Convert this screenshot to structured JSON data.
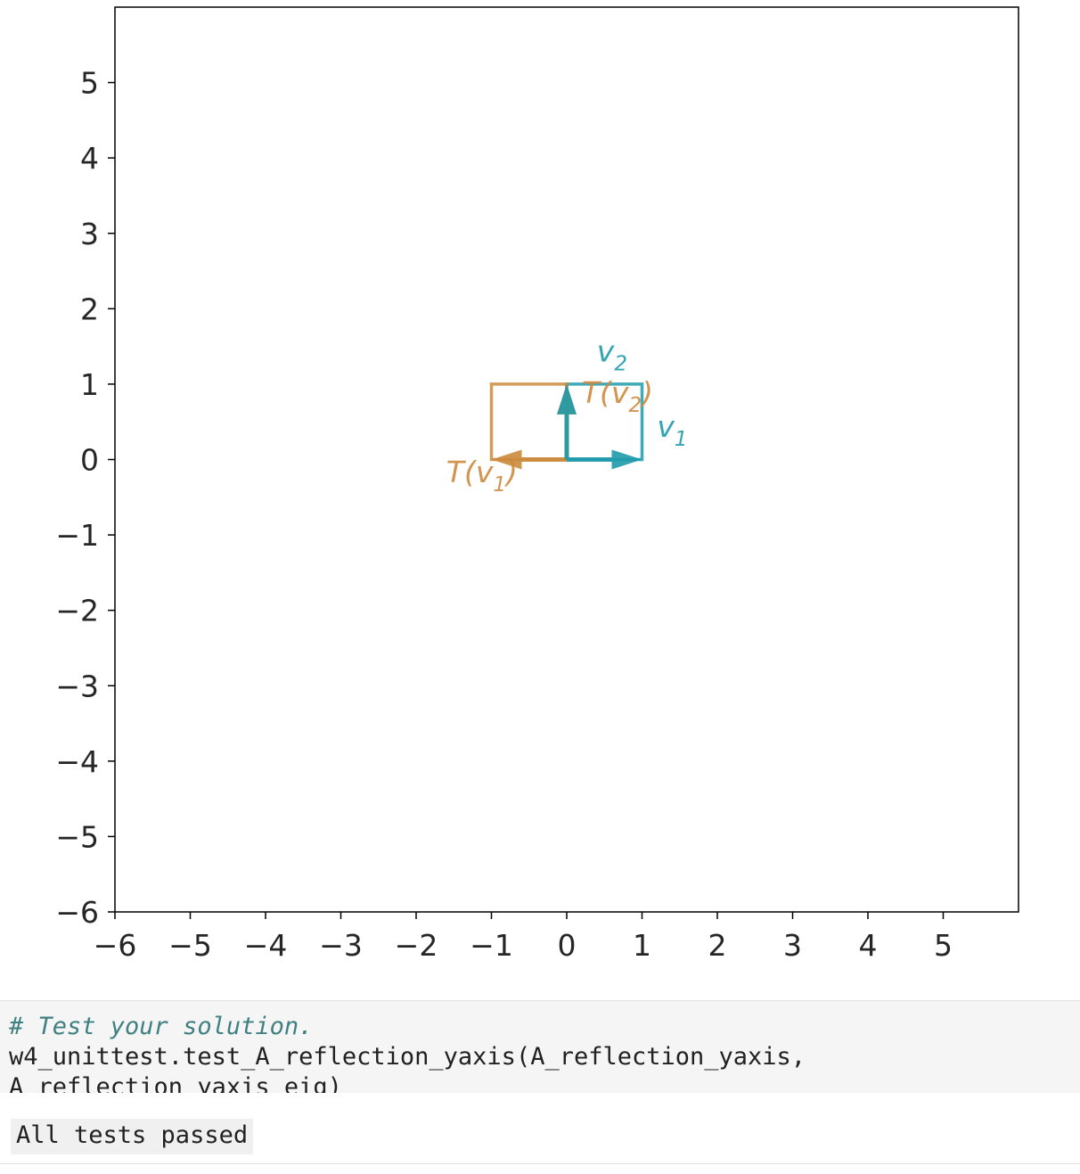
{
  "chart_data": {
    "type": "line",
    "title": "",
    "xlabel": "",
    "ylabel": "",
    "xlim": [
      -6,
      6
    ],
    "ylim": [
      -6,
      6
    ],
    "xticks": [
      "−6",
      "−5",
      "−4",
      "−3",
      "−2",
      "−1",
      "0",
      "1",
      "2",
      "3",
      "4",
      "5"
    ],
    "yticks": [
      "5",
      "4",
      "3",
      "2",
      "1",
      "0",
      "−1",
      "−2",
      "−3",
      "−4",
      "−5",
      "−6"
    ],
    "grid": false,
    "colors": {
      "original": "#1f9bab",
      "transformed": "#cc8a3c"
    },
    "vectors": [
      {
        "name": "v1",
        "from": [
          0,
          0
        ],
        "to": [
          1,
          0
        ],
        "group": "original"
      },
      {
        "name": "v2",
        "from": [
          0,
          0
        ],
        "to": [
          0,
          1
        ],
        "group": "original"
      },
      {
        "name": "T(v1)",
        "from": [
          0,
          0
        ],
        "to": [
          -1,
          0
        ],
        "group": "transformed"
      },
      {
        "name": "T(v2)",
        "from": [
          0,
          0
        ],
        "to": [
          0,
          1
        ],
        "group": "transformed"
      }
    ],
    "parallelograms": [
      {
        "group": "original",
        "points": [
          [
            0,
            0
          ],
          [
            1,
            0
          ],
          [
            1,
            1
          ],
          [
            0,
            1
          ]
        ]
      },
      {
        "group": "transformed",
        "points": [
          [
            0,
            0
          ],
          [
            -1,
            0
          ],
          [
            -1,
            1
          ],
          [
            0,
            1
          ]
        ]
      }
    ],
    "labels": [
      {
        "base": "v",
        "sub": "2",
        "group": "original",
        "at": [
          0.4,
          1.3
        ]
      },
      {
        "base": "v",
        "sub": "1",
        "group": "original",
        "at": [
          1.2,
          0.3
        ]
      },
      {
        "prefix": "T(",
        "base": "v",
        "sub": "2",
        "suffix": ")",
        "group": "transformed",
        "at": [
          0.2,
          0.75
        ]
      },
      {
        "prefix": "T(",
        "base": "v",
        "sub": "1",
        "suffix": ")",
        "group": "transformed",
        "at": [
          -1.6,
          -0.3
        ]
      }
    ]
  },
  "code_cell": {
    "comment": "# Test your solution.",
    "line1": "w4_unittest.test_A_reflection_yaxis(A_reflection_yaxis,",
    "line2": "A_reflection_yaxis_eig)"
  },
  "output_cell": {
    "text": "All tests passed"
  }
}
